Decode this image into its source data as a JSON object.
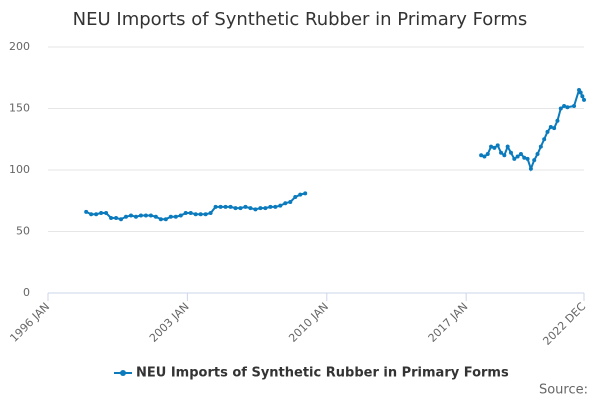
{
  "chart_data": {
    "type": "line",
    "title": "NEU Imports of Synthetic Rubber in Primary Forms",
    "x": [
      "1997-12",
      "1998-03",
      "1998-06",
      "1998-09",
      "1998-12",
      "1999-03",
      "1999-06",
      "1999-09",
      "1999-12",
      "2000-03",
      "2000-06",
      "2000-09",
      "2000-12",
      "2001-03",
      "2001-06",
      "2001-09",
      "2001-12",
      "2002-03",
      "2002-06",
      "2002-09",
      "2002-12",
      "2003-03",
      "2003-06",
      "2003-09",
      "2003-12",
      "2004-03",
      "2004-06",
      "2004-09",
      "2004-12",
      "2005-03",
      "2005-06",
      "2005-09",
      "2005-12",
      "2006-03",
      "2006-06",
      "2006-09",
      "2006-12",
      "2007-03",
      "2007-06",
      "2007-09",
      "2007-12",
      "2008-03",
      "2008-06",
      "2008-09",
      "2008-12",
      "2013-01",
      "2017-10",
      "2017-12",
      "2018-02",
      "2018-04",
      "2018-06",
      "2018-08",
      "2018-10",
      "2018-12",
      "2019-02",
      "2019-04",
      "2019-06",
      "2019-08",
      "2019-10",
      "2019-12",
      "2020-02",
      "2020-04",
      "2020-06",
      "2020-08",
      "2020-10",
      "2020-12",
      "2021-02",
      "2021-04",
      "2021-06",
      "2021-08",
      "2021-10",
      "2021-12",
      "2022-02",
      "2022-06",
      "2022-09",
      "2022-10",
      "2022-11",
      "2022-12"
    ],
    "series": [
      {
        "name": "NEU Imports of Synthetic Rubber in Primary Forms",
        "color": "#0b7bbd",
        "values": [
          66,
          64,
          64,
          65,
          65,
          61,
          61,
          60,
          62,
          63,
          62,
          63,
          63,
          63,
          62,
          60,
          60,
          62,
          62,
          63,
          65,
          65,
          64,
          64,
          64,
          65,
          70,
          70,
          70,
          70,
          69,
          69,
          70,
          69,
          68,
          69,
          69,
          70,
          70,
          71,
          73,
          74,
          78,
          80,
          81,
          null,
          112,
          111,
          113,
          119,
          118,
          120,
          114,
          112,
          119,
          114,
          109,
          111,
          113,
          110,
          109,
          101,
          108,
          113,
          119,
          125,
          131,
          135,
          134,
          140,
          150,
          152,
          151,
          152,
          165,
          163,
          160,
          157
        ]
      }
    ],
    "xlim": [
      "1996-01",
      "2022-12"
    ],
    "xticks": [
      {
        "value": "1996-01",
        "label": "1996 JAN"
      },
      {
        "value": "2003-01",
        "label": "2003 JAN"
      },
      {
        "value": "2010-01",
        "label": "2010 JAN"
      },
      {
        "value": "2017-01",
        "label": "2017 JAN"
      },
      {
        "value": "2022-12",
        "label": "2022 DEC"
      }
    ],
    "ylim": [
      0,
      200
    ],
    "yticks": [
      0,
      50,
      100,
      150,
      200
    ],
    "grid": true,
    "legend": "bottom",
    "source": "Source:"
  }
}
